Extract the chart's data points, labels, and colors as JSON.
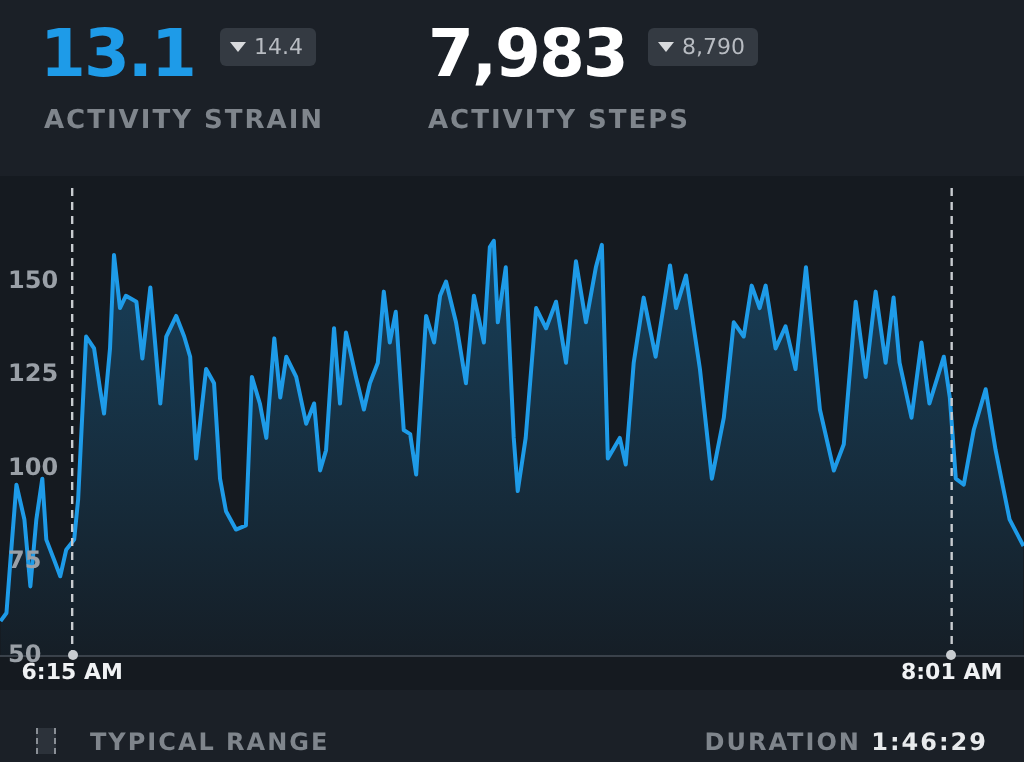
{
  "chart_data": {
    "type": "area",
    "annotations": [
      "13.1",
      "14.4",
      "ACTIVITY STRAIN",
      "7,983",
      "8,790",
      "ACTIVITY STEPS",
      "TYPICAL RANGE",
      "DURATION",
      "1:46:29"
    ],
    "x": [
      6.106,
      6.118,
      6.126,
      6.138,
      6.154,
      6.166,
      6.178,
      6.19,
      6.198,
      6.214,
      6.226,
      6.238,
      6.254,
      6.262,
      6.274,
      6.278,
      6.294,
      6.306,
      6.314,
      6.326,
      6.334,
      6.346,
      6.358,
      6.379,
      6.391,
      6.407,
      6.427,
      6.439,
      6.459,
      6.475,
      6.487,
      6.499,
      6.519,
      6.535,
      6.547,
      6.559,
      6.579,
      6.599,
      6.611,
      6.627,
      6.64,
      6.656,
      6.668,
      6.68,
      6.7,
      6.72,
      6.736,
      6.748,
      6.76,
      6.776,
      6.788,
      6.8,
      6.82,
      6.836,
      6.848,
      6.864,
      6.876,
      6.888,
      6.9,
      6.916,
      6.929,
      6.941,
      6.961,
      6.977,
      6.989,
      7.001,
      7.021,
      7.041,
      7.057,
      7.077,
      7.089,
      7.097,
      7.105,
      7.121,
      7.137,
      7.145,
      7.161,
      7.182,
      7.202,
      7.222,
      7.242,
      7.262,
      7.282,
      7.302,
      7.314,
      7.326,
      7.35,
      7.362,
      7.378,
      7.398,
      7.422,
      7.451,
      7.463,
      7.483,
      7.511,
      7.535,
      7.559,
      7.579,
      7.599,
      7.615,
      7.631,
      7.643,
      7.663,
      7.683,
      7.703,
      7.724,
      7.752,
      7.78,
      7.8,
      7.824,
      7.844,
      7.864,
      7.884,
      7.9,
      7.912,
      7.936,
      7.956,
      7.972,
      8.001,
      8.013,
      8.025,
      8.041,
      8.061,
      8.085,
      8.105,
      8.133,
      8.161
    ],
    "series": [
      {
        "color": "#1e9be8",
        "values": [
          59.2,
          61.4,
          75.5,
          95.7,
          86.4,
          68.5,
          86.4,
          97.3,
          81.0,
          75.5,
          71.2,
          78.3,
          81.0,
          91.8,
          124.5,
          135.3,
          132.1,
          121.2,
          114.7,
          132.1,
          157.1,
          142.9,
          146.2,
          144.6,
          129.4,
          148.4,
          117.4,
          135.3,
          140.8,
          135.3,
          129.9,
          102.7,
          126.6,
          122.8,
          97.3,
          88.6,
          83.7,
          84.8,
          124.5,
          117.4,
          108.2,
          134.8,
          119.0,
          129.9,
          124.5,
          112.0,
          117.4,
          99.5,
          104.9,
          137.5,
          117.4,
          136.4,
          124.5,
          115.8,
          122.8,
          128.3,
          147.3,
          133.7,
          141.9,
          110.3,
          109.2,
          98.4,
          140.8,
          133.7,
          146.2,
          150.0,
          139.1,
          122.8,
          146.2,
          133.7,
          159.2,
          160.9,
          139.1,
          153.8,
          108.2,
          94.0,
          108.2,
          142.9,
          137.5,
          144.6,
          128.3,
          155.4,
          139.1,
          153.8,
          159.8,
          102.7,
          108.2,
          101.1,
          128.3,
          145.7,
          129.9,
          154.3,
          142.9,
          151.6,
          126.6,
          97.3,
          113.6,
          139.1,
          135.3,
          148.9,
          142.9,
          148.9,
          132.1,
          138.0,
          126.6,
          153.8,
          115.8,
          99.5,
          106.5,
          144.6,
          124.5,
          147.3,
          128.3,
          145.7,
          128.3,
          113.6,
          133.7,
          117.4,
          129.9,
          119.0,
          97.3,
          95.7,
          110.3,
          121.2,
          104.9,
          86.4,
          79.3
        ]
      }
    ],
    "xlim": [
      6.105,
      8.162
    ],
    "xticks": [
      {
        "value": 6.25,
        "label": "6:15 AM"
      },
      {
        "value": 8.0167,
        "label": "8:01 AM"
      }
    ],
    "ylim": [
      50,
      175
    ],
    "yticks": [
      50,
      75,
      100,
      125,
      150
    ],
    "ref_lines": [
      {
        "axis": "x",
        "value": 6.25,
        "color": "#c8ccd0",
        "line_style": "dashed"
      },
      {
        "axis": "x",
        "value": 8.0167,
        "color": "#c8ccd0",
        "line_style": "dashed"
      }
    ],
    "grid": false,
    "legend": false,
    "marker": "none",
    "line_style": "solid"
  }
}
